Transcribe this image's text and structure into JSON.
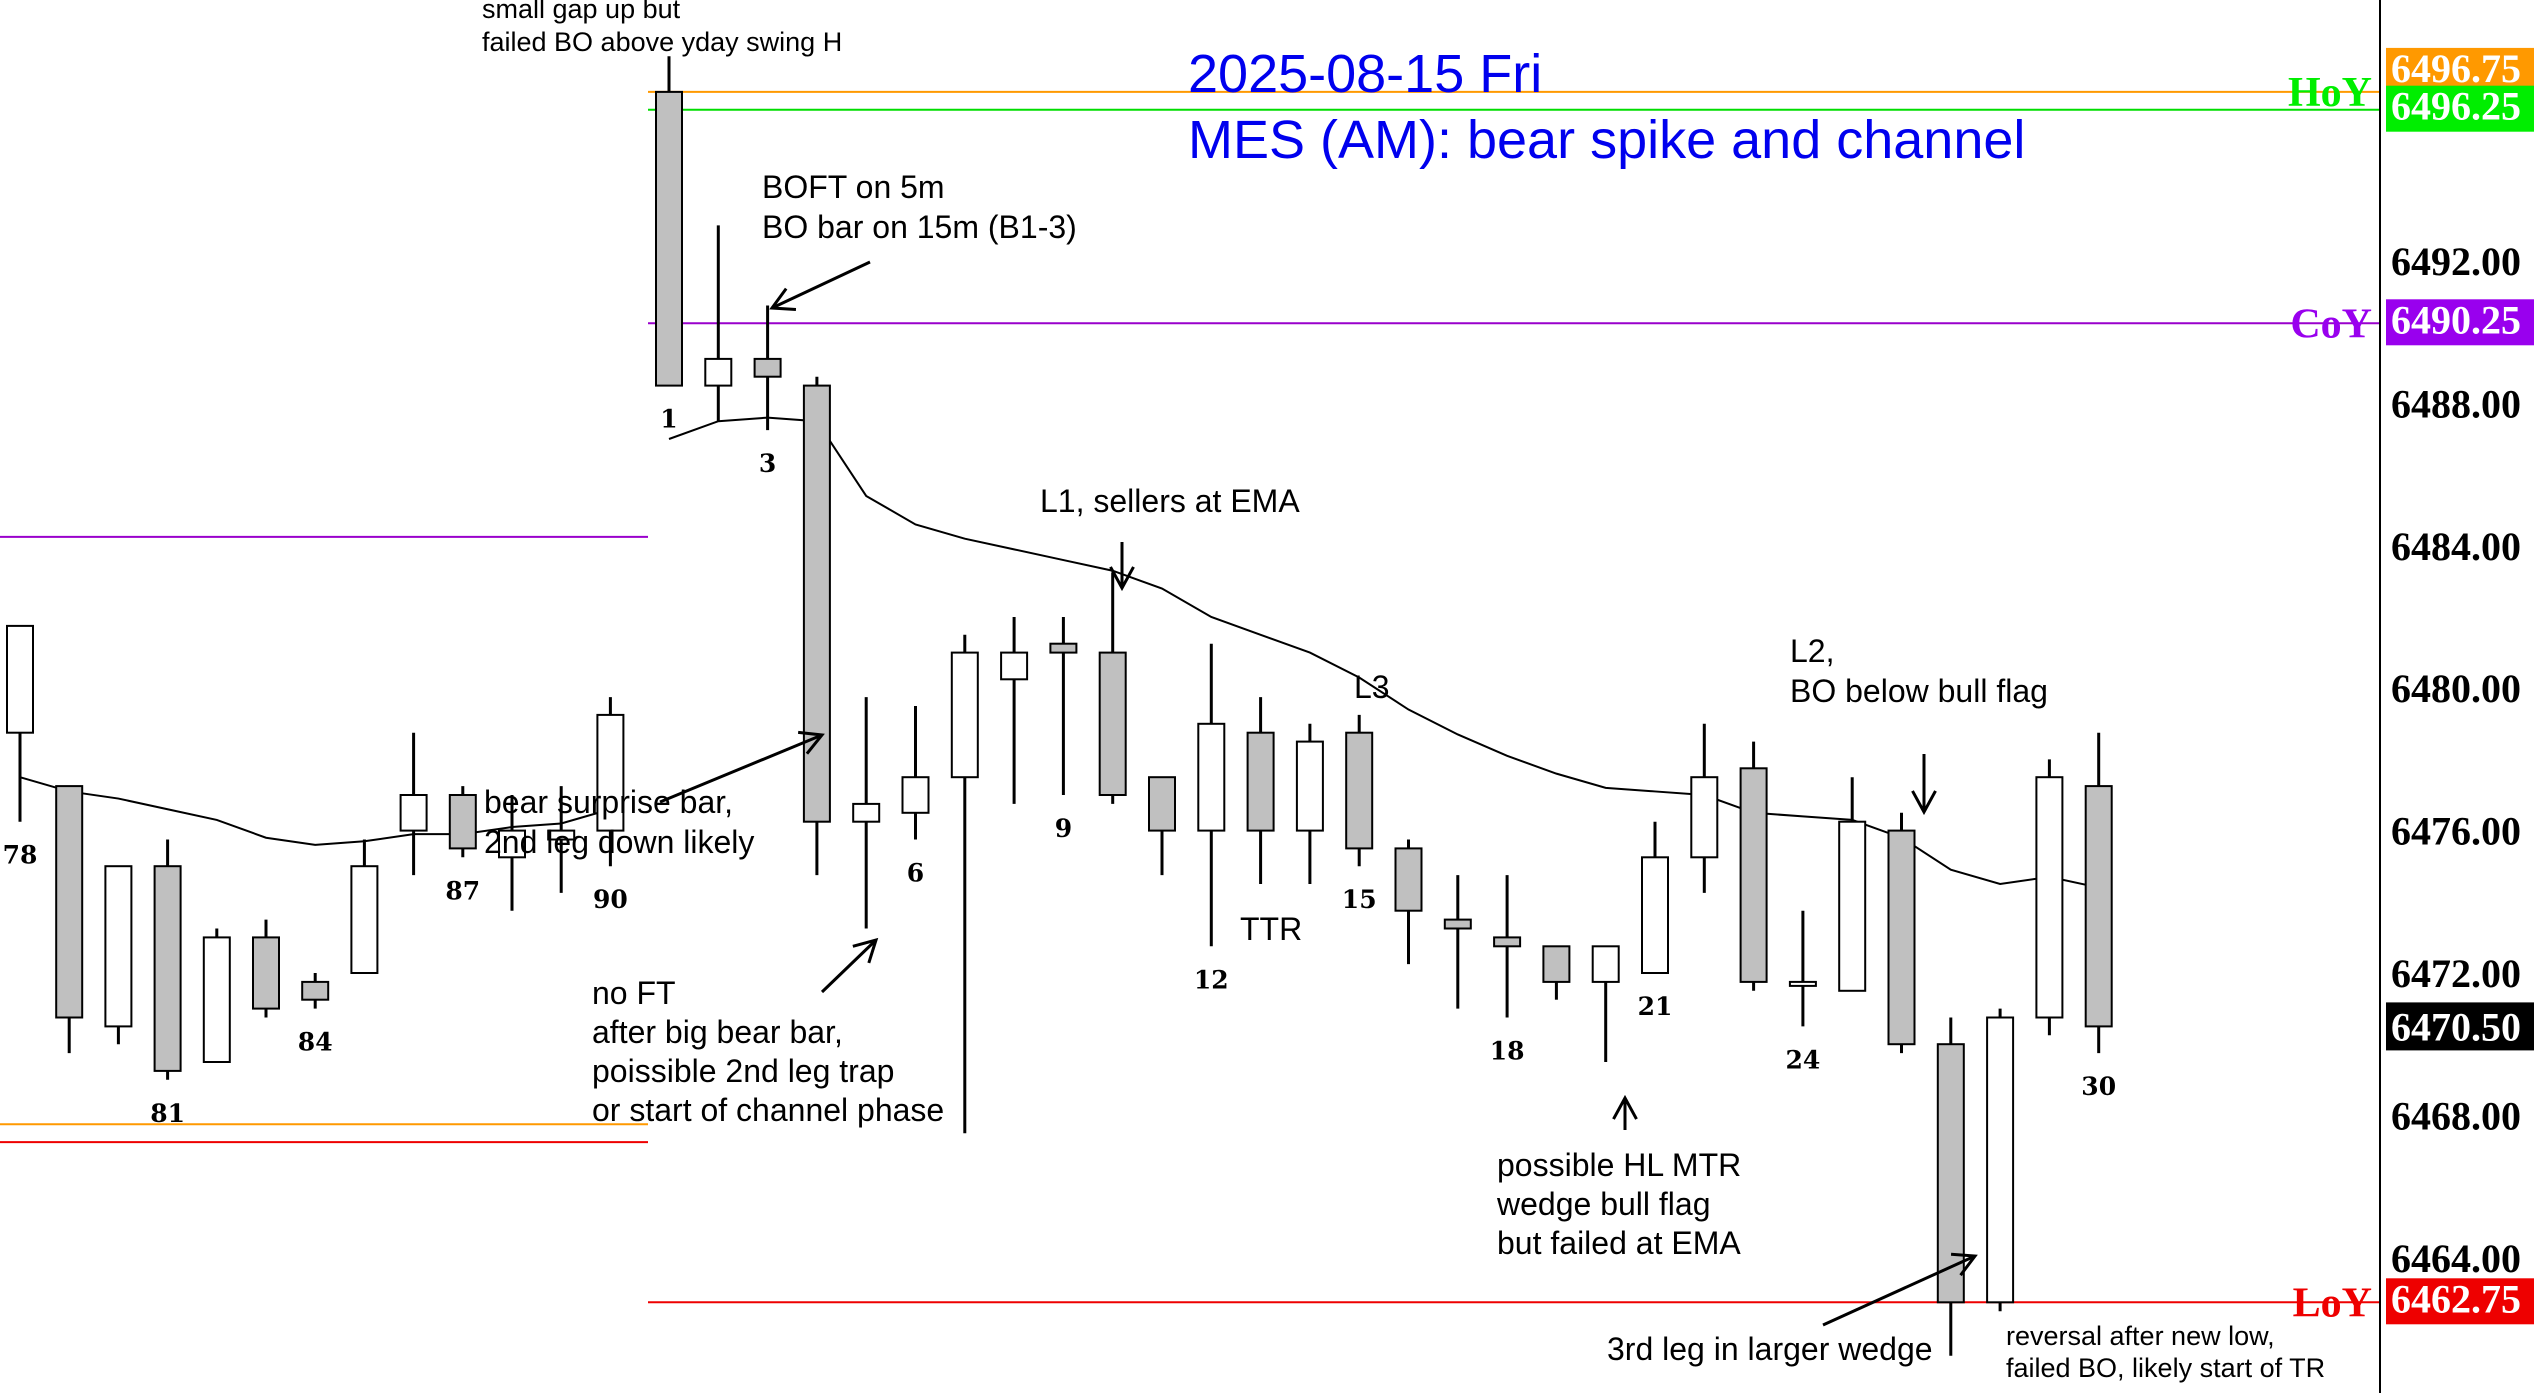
{
  "chart_data": {
    "type": "candlestick",
    "title": "2025-08-15 Fri",
    "subtitle": "MES (AM): bear spike and channel",
    "ylim": [
      6461.5,
      6498.5
    ],
    "y_ticks": [
      "6492.00",
      "6488.00",
      "6484.00",
      "6480.00",
      "6476.00",
      "6472.00",
      "6468.00",
      "6464.00"
    ],
    "y_tick_values": [
      6492,
      6488,
      6484,
      6480,
      6476,
      6472,
      6468,
      6464
    ],
    "candles_prev": [
      {
        "o": 6478.75,
        "h": 6481.6,
        "l": 6476.25,
        "c": 6481.75
      },
      {
        "o": 6477.25,
        "h": 6476.25,
        "l": 6469.75,
        "c": 6470.75
      },
      {
        "o": 6470.5,
        "h": 6475.0,
        "l": 6470.0,
        "c": 6475.0
      },
      {
        "o": 6475.0,
        "h": 6475.75,
        "l": 6469.0,
        "c": 6469.25
      },
      {
        "o": 6469.5,
        "h": 6473.25,
        "l": 6469.5,
        "c": 6473.0
      },
      {
        "o": 6473.0,
        "h": 6473.5,
        "l": 6470.75,
        "c": 6471.0
      },
      {
        "o": 6471.75,
        "h": 6472.0,
        "l": 6471.0,
        "c": 6471.25
      },
      {
        "o": 6472.0,
        "h": 6475.75,
        "l": 6472.0,
        "c": 6475.0
      },
      {
        "o": 6476.0,
        "h": 6478.75,
        "l": 6474.75,
        "c": 6477.0
      },
      {
        "o": 6477.0,
        "h": 6477.25,
        "l": 6475.25,
        "c": 6475.5
      },
      {
        "o": 6475.25,
        "h": 6477.0,
        "l": 6473.75,
        "c": 6476.0
      },
      {
        "o": 6475.75,
        "h": 6477.25,
        "l": 6474.25,
        "c": 6476.0
      },
      {
        "o": 6476.0,
        "h": 6479.75,
        "l": 6475.0,
        "c": 6479.25
      }
    ],
    "prev_bar_labels": [
      {
        "label": "78",
        "bar": 0
      },
      {
        "label": "81",
        "bar": 3
      },
      {
        "label": "84",
        "bar": 6
      },
      {
        "label": "87",
        "bar": 9
      },
      {
        "label": "90",
        "bar": 12
      }
    ],
    "candles": [
      {
        "o": 6496.75,
        "h": 6497.75,
        "l": 6488.5,
        "c": 6488.5
      },
      {
        "o": 6488.5,
        "h": 6493.0,
        "l": 6487.5,
        "c": 6489.25
      },
      {
        "o": 6489.25,
        "h": 6490.75,
        "l": 6487.25,
        "c": 6488.75
      },
      {
        "o": 6488.5,
        "h": 6488.75,
        "l": 6474.75,
        "c": 6476.25
      },
      {
        "o": 6476.25,
        "h": 6479.75,
        "l": 6473.25,
        "c": 6476.75
      },
      {
        "o": 6476.5,
        "h": 6479.5,
        "l": 6475.75,
        "c": 6477.5
      },
      {
        "o": 6477.5,
        "h": 6481.5,
        "l": 6467.5,
        "c": 6481.0
      },
      {
        "o": 6480.25,
        "h": 6482.0,
        "l": 6476.75,
        "c": 6481.0
      },
      {
        "o": 6481.25,
        "h": 6482.0,
        "l": 6477.0,
        "c": 6481.0
      },
      {
        "o": 6481.0,
        "h": 6483.25,
        "l": 6476.75,
        "c": 6477.0
      },
      {
        "o": 6477.5,
        "h": 6477.5,
        "l": 6474.75,
        "c": 6476.0
      },
      {
        "o": 6476.0,
        "h": 6481.25,
        "l": 6472.75,
        "c": 6479.0
      },
      {
        "o": 6478.75,
        "h": 6479.75,
        "l": 6474.5,
        "c": 6476.0
      },
      {
        "o": 6476.0,
        "h": 6479.0,
        "l": 6474.5,
        "c": 6478.5
      },
      {
        "o": 6478.75,
        "h": 6479.25,
        "l": 6475.0,
        "c": 6475.5
      },
      {
        "o": 6475.5,
        "h": 6475.75,
        "l": 6472.25,
        "c": 6473.75
      },
      {
        "o": 6473.5,
        "h": 6474.75,
        "l": 6471.0,
        "c": 6473.25
      },
      {
        "o": 6473.0,
        "h": 6474.75,
        "l": 6470.75,
        "c": 6472.75
      },
      {
        "o": 6472.75,
        "h": 6472.75,
        "l": 6471.25,
        "c": 6471.75
      },
      {
        "o": 6471.75,
        "h": 6472.75,
        "l": 6469.5,
        "c": 6472.75
      },
      {
        "o": 6472.0,
        "h": 6476.25,
        "l": 6472.0,
        "c": 6475.25
      },
      {
        "o": 6475.25,
        "h": 6479.0,
        "l": 6474.25,
        "c": 6477.5
      },
      {
        "o": 6477.75,
        "h": 6478.5,
        "l": 6471.5,
        "c": 6471.75
      },
      {
        "o": 6471.75,
        "h": 6473.75,
        "l": 6470.5,
        "c": 6471.75
      },
      {
        "o": 6471.5,
        "h": 6477.5,
        "l": 6471.5,
        "c": 6476.25
      },
      {
        "o": 6476.0,
        "h": 6476.5,
        "l": 6469.75,
        "c": 6470.0
      },
      {
        "o": 6470.0,
        "h": 6470.75,
        "l": 6461.25,
        "c": 6462.75
      },
      {
        "o": 6462.75,
        "h": 6471.0,
        "l": 6462.5,
        "c": 6470.75
      },
      {
        "o": 6470.75,
        "h": 6478.0,
        "l": 6470.25,
        "c": 6477.5
      },
      {
        "o": 6477.25,
        "h": 6478.75,
        "l": 6469.75,
        "c": 6470.5
      }
    ],
    "bar_labels": [
      {
        "label": "1",
        "bar": 0
      },
      {
        "label": "3",
        "bar": 2
      },
      {
        "label": "6",
        "bar": 5
      },
      {
        "label": "9",
        "bar": 8
      },
      {
        "label": "12",
        "bar": 11
      },
      {
        "label": "15",
        "bar": 14
      },
      {
        "label": "18",
        "bar": 17
      },
      {
        "label": "21",
        "bar": 20
      },
      {
        "label": "24",
        "bar": 23
      },
      {
        "label": "30",
        "bar": 29
      }
    ],
    "ema": [
      6487.0,
      6487.5,
      6487.6,
      6487.5,
      6485.4,
      6484.6,
      6484.2,
      6483.9,
      6483.6,
      6483.3,
      6482.8,
      6482.0,
      6481.5,
      6481.0,
      6480.3,
      6479.4,
      6478.7,
      6478.1,
      6477.6,
      6477.2,
      6477.1,
      6477.0,
      6476.5,
      6476.4,
      6476.3,
      6475.8,
      6474.9,
      6474.5,
      6474.7,
      6474.4
    ],
    "ema_prev": [
      6477.5,
      6477.1,
      6476.9,
      6476.6,
      6476.3,
      6475.8,
      6475.6,
      6475.7,
      6475.9,
      6475.9,
      6476.1,
      6476.2,
      6476.6
    ],
    "levels": [
      {
        "name": "HoY",
        "value": 6496.75,
        "label": "6496.75",
        "color": "#ff9900",
        "label_color": "#00ee00",
        "badge_bg": "#ff9900"
      },
      {
        "name": "",
        "value": 6496.25,
        "label": "6496.25",
        "color": "#00dd00",
        "badge_bg": "#00ee00"
      },
      {
        "name": "CoY",
        "value": 6490.25,
        "label": "6490.25",
        "color": "#9900cc",
        "label_color": "#9900ee",
        "badge_bg": "#9900ee"
      },
      {
        "name": "LoY",
        "value": 6462.75,
        "label": "6462.75",
        "color": "#ee0000",
        "label_color": "#ee0000",
        "badge_bg": "#ee0000"
      }
    ],
    "prev_levels": [
      {
        "value": 6484.25,
        "color": "#9900cc"
      },
      {
        "value": 6467.75,
        "color": "#ff9900"
      },
      {
        "value": 6467.25,
        "color": "#ee0000"
      }
    ],
    "last_price": {
      "label": "6470.50",
      "value": 6470.5,
      "badge_bg": "#000000"
    },
    "annotations": [
      {
        "lines": [
          "small gap up but",
          "failed BO above yday swing H"
        ]
      },
      {
        "lines": [
          "BOFT on 5m",
          "BO bar on 15m (B1-3)"
        ]
      },
      {
        "lines": [
          "L1, sellers at EMA"
        ]
      },
      {
        "lines": [
          "L3"
        ]
      },
      {
        "lines": [
          "TTR"
        ]
      },
      {
        "lines": [
          "L2,",
          "BO below bull flag"
        ]
      },
      {
        "lines": [
          "bear surprise bar,",
          "2nd leg down likely"
        ]
      },
      {
        "lines": [
          "no FT",
          "after big bear bar,",
          "poissible 2nd leg trap",
          "or start of channel phase"
        ]
      },
      {
        "lines": [
          "possible HL MTR",
          "wedge bull flag",
          "but failed at EMA"
        ]
      },
      {
        "lines": [
          "3rd leg in larger wedge"
        ]
      },
      {
        "lines": [
          "reversal after new low,",
          "failed BO, likely start of TR"
        ]
      }
    ]
  }
}
